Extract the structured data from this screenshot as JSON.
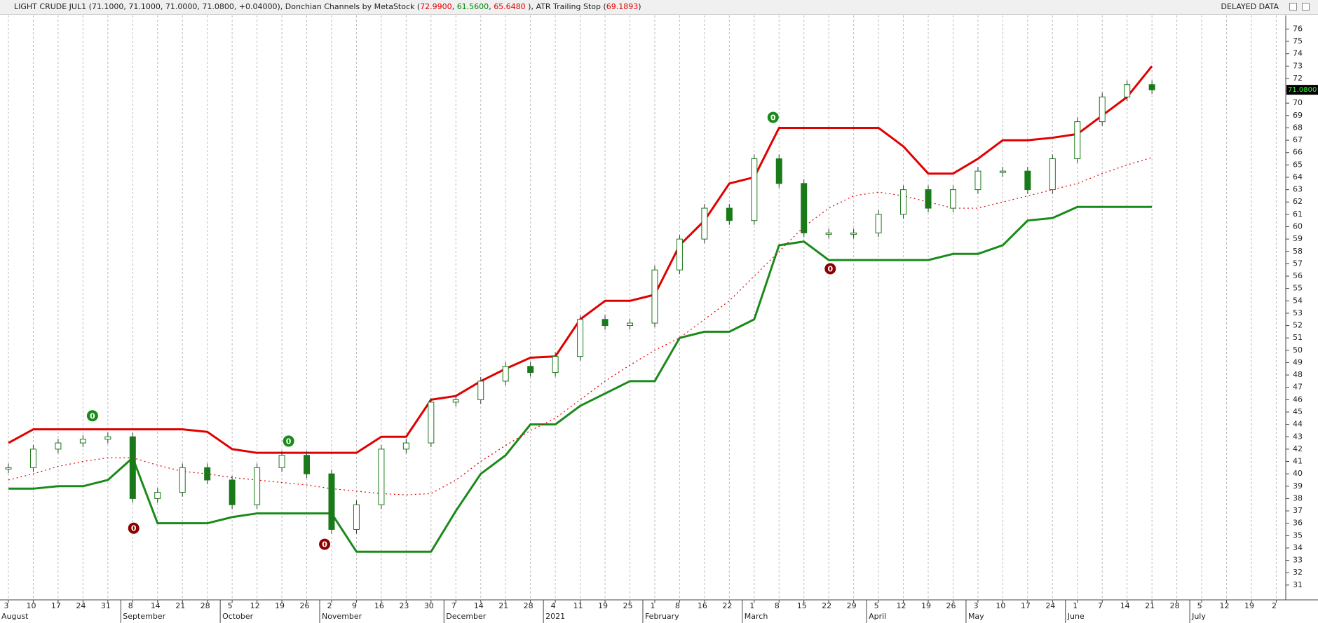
{
  "chart_data": {
    "type": "line",
    "title_parts": [
      {
        "text": "LIGHT CRUDE JUL1 (71.1000, 71.1000, 71.0000, 71.0800, +0.04000), Donchian Channels by MetaStock (",
        "color": "#222222"
      },
      {
        "text": "72.9900",
        "color": "#e00000"
      },
      {
        "text": ", ",
        "color": "#222222"
      },
      {
        "text": "61.5600",
        "color": "#008000"
      },
      {
        "text": ", ",
        "color": "#222222"
      },
      {
        "text": "65.6480",
        "color": "#e00000"
      },
      {
        "text": " ), ATR Trailing Stop (",
        "color": "#222222"
      },
      {
        "text": "69.1893",
        "color": "#e00000"
      },
      {
        "text": ")",
        "color": "#222222"
      }
    ],
    "status": "DELAYED DATA",
    "categories": [
      "3",
      "10",
      "17",
      "24",
      "31",
      "8",
      "14",
      "21",
      "28",
      "5",
      "12",
      "19",
      "26",
      "2",
      "9",
      "16",
      "23",
      "30",
      "7",
      "14",
      "21",
      "28",
      "4",
      "11",
      "19",
      "25",
      "1",
      "8",
      "16",
      "22",
      "1",
      "8",
      "15",
      "22",
      "29",
      "5",
      "12",
      "19",
      "26",
      "3",
      "10",
      "17",
      "24",
      "1",
      "7",
      "14",
      "21",
      "28",
      "5",
      "12",
      "19",
      "2"
    ],
    "months": [
      "August",
      null,
      null,
      null,
      null,
      "September",
      null,
      null,
      null,
      "October",
      null,
      null,
      null,
      "November",
      null,
      null,
      null,
      null,
      "December",
      null,
      null,
      null,
      "2021",
      null,
      null,
      null,
      "February",
      null,
      null,
      null,
      "March",
      null,
      null,
      null,
      null,
      "April",
      null,
      null,
      null,
      "May",
      null,
      null,
      null,
      "June",
      null,
      null,
      null,
      null,
      "July",
      null,
      null,
      null
    ],
    "ylim": [
      29.8,
      77.1
    ],
    "yticks": [
      31,
      32,
      33,
      34,
      35,
      36,
      37,
      38,
      39,
      40,
      41,
      42,
      43,
      44,
      45,
      46,
      47,
      48,
      49,
      50,
      51,
      52,
      53,
      54,
      55,
      56,
      57,
      58,
      59,
      60,
      61,
      62,
      63,
      64,
      65,
      66,
      67,
      68,
      69,
      70,
      71,
      72,
      73,
      74,
      75,
      76
    ],
    "last_price": {
      "value": 71.08,
      "label": "71.0800"
    },
    "series": [
      {
        "color": "#e00000",
        "style": "thick",
        "values": [
          42.5,
          43.6,
          43.6,
          43.6,
          43.6,
          43.6,
          43.6,
          43.6,
          43.4,
          42,
          41.7,
          41.7,
          41.7,
          41.7,
          41.7,
          43,
          43,
          46,
          46.3,
          47.5,
          48.5,
          49.4,
          49.5,
          52.5,
          54,
          54,
          54.5,
          58.5,
          60.5,
          63.5,
          64,
          68,
          68,
          68,
          68,
          68,
          66.5,
          64.3,
          64.3,
          65.5,
          67,
          67,
          67.2,
          67.5,
          69,
          70.5,
          73,
          null,
          null,
          null,
          null,
          null
        ]
      },
      {
        "color": "#1a8a1a",
        "style": "thick",
        "values": [
          38.8,
          38.8,
          39,
          39,
          39.5,
          41.3,
          36,
          36,
          36,
          36.5,
          36.8,
          36.8,
          36.8,
          36.8,
          33.7,
          33.7,
          33.7,
          33.7,
          37,
          40,
          41.5,
          44,
          44,
          45.5,
          46.5,
          47.5,
          47.5,
          51,
          51.5,
          51.5,
          52.5,
          58.5,
          58.8,
          57.3,
          57.3,
          57.3,
          57.3,
          57.3,
          57.8,
          57.8,
          58.5,
          60.5,
          60.7,
          61.6,
          61.6,
          61.6,
          61.6,
          null,
          null,
          null,
          null,
          null
        ]
      },
      {
        "color": "#e00000",
        "style": "dotted",
        "values": [
          39.5,
          40,
          40.6,
          41,
          41.3,
          41.3,
          40.7,
          40.2,
          40,
          39.7,
          39.5,
          39.3,
          39.1,
          38.8,
          38.6,
          38.4,
          38.3,
          38.4,
          39.5,
          41,
          42.3,
          43.5,
          44.5,
          46,
          47.5,
          48.8,
          50,
          51,
          52.5,
          54,
          56,
          58,
          60,
          61.5,
          62.5,
          62.8,
          62.5,
          62,
          61.5,
          61.5,
          62,
          62.5,
          63,
          63.5,
          64.3,
          65,
          65.6,
          null,
          null,
          null,
          null,
          null
        ]
      },
      {
        "color": "#1a7a1a",
        "style": "close",
        "values": [
          40.5,
          42,
          42.5,
          42.8,
          43,
          38,
          38.5,
          40.5,
          39.5,
          37.5,
          40.5,
          41.5,
          40,
          35.5,
          37.5,
          42,
          42.5,
          45.8,
          46,
          47.5,
          48.7,
          48.2,
          49.5,
          52.5,
          52,
          52.2,
          56.5,
          59,
          61.5,
          60.5,
          65.5,
          63.5,
          59.5,
          59.5,
          59.5,
          61,
          63,
          61.5,
          63,
          64.5,
          64.5,
          63,
          65.5,
          68.5,
          70.5,
          71.5,
          71.08,
          null,
          null,
          null,
          null,
          null
        ]
      }
    ],
    "markers": [
      {
        "label": "0",
        "x": 3.38,
        "y": 44.7,
        "color": "#1a8a1a"
      },
      {
        "label": "0",
        "x": 5.04,
        "y": 35.6,
        "color": "#8b0000"
      },
      {
        "label": "0",
        "x": 11.27,
        "y": 42.65,
        "color": "#1a8a1a"
      },
      {
        "label": "0",
        "x": 12.72,
        "y": 34.3,
        "color": "#8b0000"
      },
      {
        "label": "0",
        "x": 30.76,
        "y": 68.85,
        "color": "#1a8a1a"
      },
      {
        "label": "0",
        "x": 33.06,
        "y": 56.6,
        "color": "#8b0000"
      }
    ]
  }
}
